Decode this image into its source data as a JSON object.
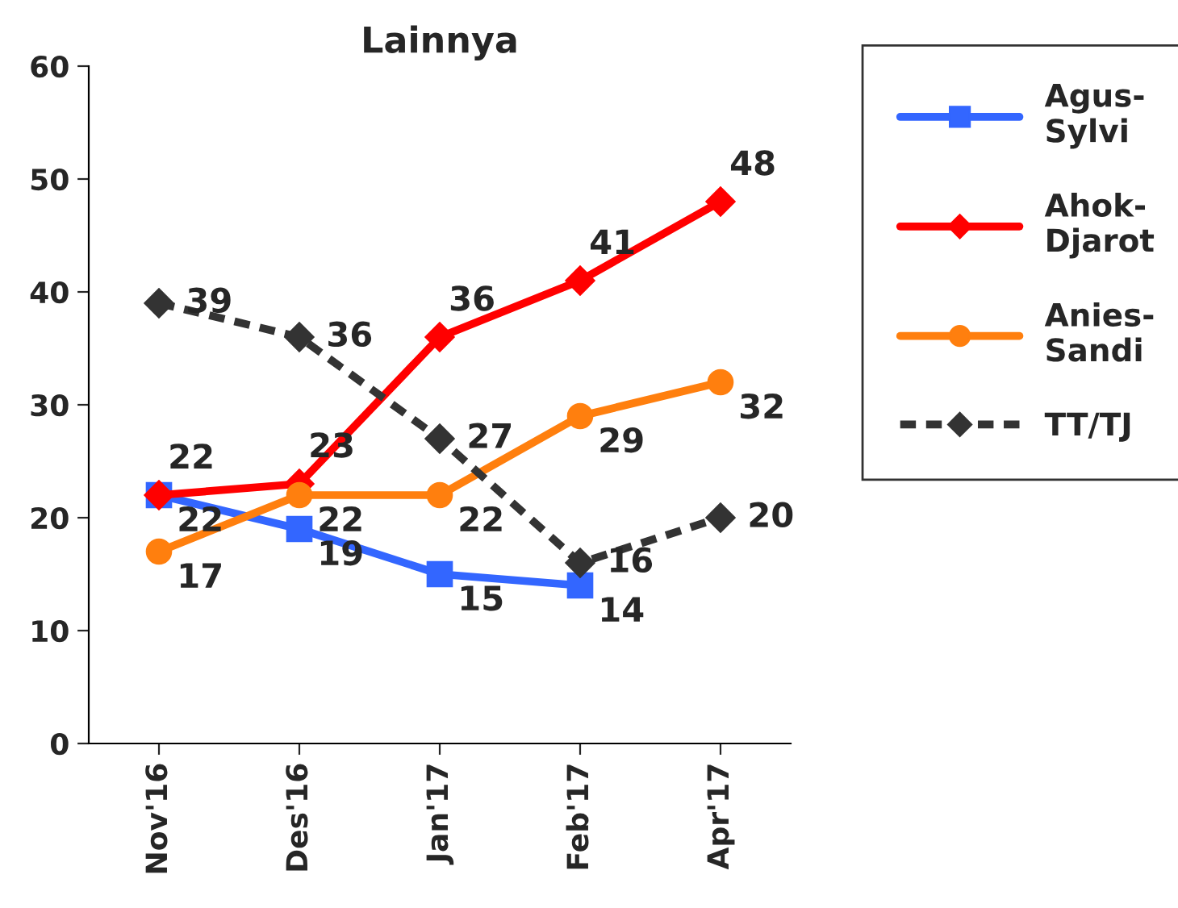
{
  "chart_data": {
    "type": "line",
    "title": "Lainnya",
    "categories": [
      "Nov'16",
      "Des'16",
      "Jan'17",
      "Feb'17",
      "Apr'17"
    ],
    "series": [
      {
        "name": "Agus-\nSylvi",
        "color": "#3366ff",
        "values": [
          22,
          19,
          15,
          14,
          null
        ],
        "marker": "square",
        "line_style": "solid"
      },
      {
        "name": "Ahok-\nDjarot",
        "color": "#ff0000",
        "values": [
          22,
          23,
          36,
          41,
          48
        ],
        "marker": "diamond",
        "line_style": "solid"
      },
      {
        "name": "Anies-\nSandi",
        "color": "#ff7f0e",
        "values": [
          17,
          22,
          22,
          29,
          32
        ],
        "marker": "circle",
        "line_style": "solid"
      },
      {
        "name": "TT/TJ",
        "color": "#333333",
        "values": [
          39,
          36,
          27,
          16,
          20
        ],
        "marker": "diamond",
        "line_style": "dashed"
      }
    ],
    "ylim": [
      0,
      60
    ],
    "yticks": [
      0,
      10,
      20,
      30,
      40,
      50,
      60
    ],
    "grid": false,
    "legend": "right",
    "data_labels": true
  }
}
